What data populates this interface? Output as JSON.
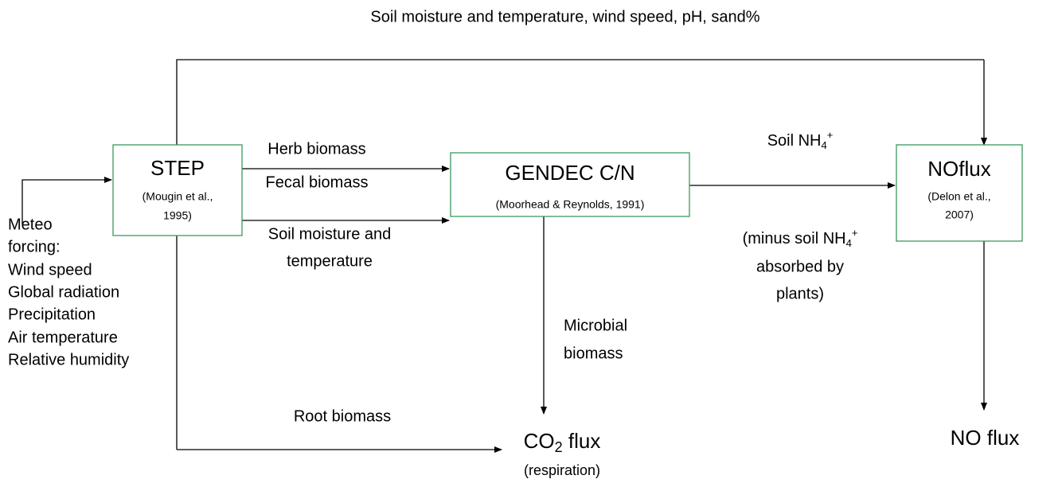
{
  "top_label": "Soil moisture and temperature, wind speed, pH, sand%",
  "nodes": [
    {
      "label": "STEP",
      "citation": [
        "(Mougin et al.,",
        "1995)"
      ]
    },
    {
      "label": "GENDEC C/N",
      "citation": [
        "(Moorhead & Reynolds, 1991)"
      ]
    },
    {
      "label": "NOflux",
      "citation": [
        "(Delon et al.,",
        "2007)"
      ]
    }
  ],
  "meteo": [
    "Meteo",
    "forcing:",
    "Wind speed",
    "Global radiation",
    "Precipitation",
    "Air temperature",
    "Relative humidity"
  ],
  "edges": {
    "step_to_gendec_top": [
      "Herb biomass",
      "Fecal biomass"
    ],
    "step_to_gendec_bottom": [
      "Soil moisture and",
      "temperature"
    ],
    "gendec_to_noflux": {
      "above": {
        "text": "Soil NH",
        "sub": "4",
        "sup": "+"
      },
      "below": {
        "text": "(minus soil NH",
        "sub": "4",
        "sup": "+",
        "lines": [
          "absorbed by",
          "plants)"
        ]
      }
    },
    "gendec_to_co2": [
      "Microbial",
      "biomass"
    ],
    "step_to_co2": "Root biomass"
  },
  "outputs": {
    "co2": {
      "text": "CO",
      "sub": "2",
      "rest": " flux",
      "note": "(respiration)"
    },
    "no": "NO flux"
  }
}
